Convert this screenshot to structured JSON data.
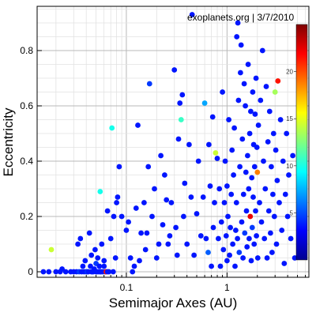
{
  "chart_data": {
    "type": "scatter",
    "title": "",
    "annotation": "exoplanets.org | 3/7/2010",
    "xlabel": "Semimajor Axes (AU)",
    "ylabel": "Eccentricity",
    "xscale": "log",
    "xlim": [
      0.013,
      6.5
    ],
    "ylim": [
      -0.02,
      0.96
    ],
    "x_ticks": [
      0.1,
      1
    ],
    "x_tick_labels": [
      "0.1",
      "1"
    ],
    "y_ticks": [
      0,
      0.2,
      0.4,
      0.6,
      0.8
    ],
    "y_tick_labels": [
      "0",
      "0.2",
      "0.4",
      "0.6",
      "0.8"
    ],
    "grid": true,
    "colorbar": {
      "placement": "right",
      "range": [
        0,
        25
      ],
      "ticks": [
        5,
        10,
        15,
        20
      ],
      "tick_labels": [
        "5",
        "10",
        "15",
        "20"
      ],
      "colormap": "jet"
    },
    "points": [
      [
        0.015,
        0.0,
        1
      ],
      [
        0.017,
        0.0,
        1
      ],
      [
        0.018,
        0.08,
        13
      ],
      [
        0.02,
        0.0,
        1
      ],
      [
        0.022,
        0.0,
        1
      ],
      [
        0.023,
        0.01,
        1
      ],
      [
        0.025,
        0.0,
        1
      ],
      [
        0.028,
        0.0,
        1
      ],
      [
        0.03,
        0.0,
        1
      ],
      [
        0.032,
        0.0,
        1
      ],
      [
        0.033,
        0.1,
        1
      ],
      [
        0.034,
        0.0,
        2
      ],
      [
        0.035,
        0.12,
        1
      ],
      [
        0.036,
        0.0,
        1
      ],
      [
        0.037,
        0.02,
        1
      ],
      [
        0.038,
        0.0,
        1
      ],
      [
        0.039,
        0.04,
        1
      ],
      [
        0.04,
        0.0,
        1
      ],
      [
        0.041,
        0.0,
        2
      ],
      [
        0.042,
        0.0,
        1
      ],
      [
        0.043,
        0.14,
        1
      ],
      [
        0.044,
        0.02,
        1
      ],
      [
        0.045,
        0.0,
        1
      ],
      [
        0.045,
        0.06,
        1
      ],
      [
        0.046,
        0.0,
        1
      ],
      [
        0.047,
        0.0,
        1
      ],
      [
        0.048,
        0.01,
        1
      ],
      [
        0.049,
        0.08,
        1
      ],
      [
        0.05,
        0.0,
        1
      ],
      [
        0.05,
        0.03,
        2
      ],
      [
        0.051,
        0.0,
        1
      ],
      [
        0.052,
        0.05,
        1
      ],
      [
        0.053,
        0.0,
        1
      ],
      [
        0.054,
        0.02,
        1
      ],
      [
        0.055,
        0.0,
        1
      ],
      [
        0.055,
        0.29,
        8
      ],
      [
        0.056,
        0.0,
        1
      ],
      [
        0.057,
        0.1,
        1
      ],
      [
        0.058,
        0.0,
        1
      ],
      [
        0.06,
        0.02,
        1
      ],
      [
        0.06,
        0.04,
        1
      ],
      [
        0.062,
        0.0,
        1
      ],
      [
        0.063,
        0.0,
        21
      ],
      [
        0.065,
        0.0,
        1
      ],
      [
        0.065,
        0.22,
        1
      ],
      [
        0.067,
        0.0,
        1
      ],
      [
        0.07,
        0.12,
        1
      ],
      [
        0.072,
        0.52,
        8
      ],
      [
        0.074,
        0.0,
        1
      ],
      [
        0.075,
        0.2,
        1
      ],
      [
        0.078,
        0.05,
        1
      ],
      [
        0.08,
        0.25,
        1
      ],
      [
        0.082,
        0.27,
        1
      ],
      [
        0.085,
        0.38,
        1
      ],
      [
        0.09,
        0.2,
        1
      ],
      [
        0.1,
        0.15,
        1
      ],
      [
        0.105,
        0.18,
        1
      ],
      [
        0.11,
        0.05,
        1
      ],
      [
        0.115,
        0.0,
        1
      ],
      [
        0.12,
        0.02,
        1
      ],
      [
        0.125,
        0.23,
        1
      ],
      [
        0.13,
        0.53,
        1
      ],
      [
        0.135,
        0.04,
        1
      ],
      [
        0.14,
        0.14,
        1
      ],
      [
        0.15,
        0.25,
        1
      ],
      [
        0.155,
        0.08,
        1
      ],
      [
        0.16,
        0.14,
        1
      ],
      [
        0.165,
        0.38,
        1
      ],
      [
        0.17,
        0.68,
        2
      ],
      [
        0.18,
        0.2,
        1
      ],
      [
        0.19,
        0.3,
        1
      ],
      [
        0.2,
        0.05,
        1
      ],
      [
        0.21,
        0.1,
        1
      ],
      [
        0.22,
        0.42,
        1
      ],
      [
        0.23,
        0.17,
        1
      ],
      [
        0.24,
        0.35,
        1
      ],
      [
        0.25,
        0.26,
        1
      ],
      [
        0.26,
        0.1,
        1
      ],
      [
        0.27,
        0.13,
        1
      ],
      [
        0.28,
        0.25,
        1
      ],
      [
        0.3,
        0.73,
        1
      ],
      [
        0.31,
        0.16,
        1
      ],
      [
        0.32,
        0.06,
        1
      ],
      [
        0.33,
        0.48,
        1
      ],
      [
        0.34,
        0.61,
        1
      ],
      [
        0.35,
        0.55,
        9
      ],
      [
        0.36,
        0.64,
        1
      ],
      [
        0.37,
        0.2,
        1
      ],
      [
        0.38,
        0.32,
        1
      ],
      [
        0.4,
        0.1,
        1
      ],
      [
        0.42,
        0.46,
        1
      ],
      [
        0.44,
        0.27,
        1
      ],
      [
        0.45,
        0.93,
        1
      ],
      [
        0.47,
        0.06,
        1
      ],
      [
        0.5,
        0.21,
        1
      ],
      [
        0.52,
        0.4,
        1
      ],
      [
        0.55,
        0.13,
        1
      ],
      [
        0.58,
        0.27,
        1
      ],
      [
        0.6,
        0.61,
        5
      ],
      [
        0.62,
        0.12,
        1
      ],
      [
        0.65,
        0.07,
        3
      ],
      [
        0.66,
        0.46,
        1
      ],
      [
        0.68,
        0.31,
        1
      ],
      [
        0.7,
        0.02,
        1
      ],
      [
        0.72,
        0.56,
        1
      ],
      [
        0.73,
        0.16,
        1
      ],
      [
        0.75,
        0.25,
        1
      ],
      [
        0.77,
        0.43,
        13
      ],
      [
        0.8,
        0.41,
        1
      ],
      [
        0.82,
        0.12,
        1
      ],
      [
        0.84,
        0.3,
        1
      ],
      [
        0.86,
        0.02,
        1
      ],
      [
        0.88,
        0.18,
        1
      ],
      [
        0.9,
        0.65,
        1
      ],
      [
        0.92,
        0.08,
        1
      ],
      [
        0.94,
        0.25,
        1
      ],
      [
        0.96,
        0.4,
        1
      ],
      [
        0.98,
        0.13,
        1
      ],
      [
        1.0,
        0.04,
        1
      ],
      [
        1.0,
        0.31,
        1
      ],
      [
        1.02,
        0.2,
        1
      ],
      [
        1.04,
        0.55,
        1
      ],
      [
        1.06,
        0.06,
        1
      ],
      [
        1.08,
        0.16,
        1
      ],
      [
        1.1,
        0.28,
        1
      ],
      [
        1.12,
        0.44,
        1
      ],
      [
        1.14,
        0.1,
        1
      ],
      [
        1.16,
        0.35,
        1
      ],
      [
        1.18,
        0.52,
        1
      ],
      [
        1.2,
        0.02,
        1
      ],
      [
        1.22,
        0.15,
        1
      ],
      [
        1.24,
        0.25,
        1
      ],
      [
        1.25,
        0.85,
        1
      ],
      [
        1.27,
        0.12,
        1
      ],
      [
        1.28,
        0.9,
        1
      ],
      [
        1.3,
        0.62,
        1
      ],
      [
        1.32,
        0.07,
        2
      ],
      [
        1.34,
        0.38,
        1
      ],
      [
        1.36,
        0.72,
        1
      ],
      [
        1.38,
        0.82,
        1
      ],
      [
        1.4,
        0.18,
        1
      ],
      [
        1.42,
        0.48,
        1
      ],
      [
        1.44,
        0.05,
        1
      ],
      [
        1.46,
        0.28,
        1
      ],
      [
        1.48,
        0.68,
        1
      ],
      [
        1.5,
        0.14,
        2
      ],
      [
        1.52,
        0.6,
        1
      ],
      [
        1.54,
        0.36,
        1
      ],
      [
        1.56,
        0.22,
        1
      ],
      [
        1.58,
        0.09,
        1
      ],
      [
        1.6,
        0.42,
        1
      ],
      [
        1.62,
        0.75,
        1
      ],
      [
        1.64,
        0.3,
        1
      ],
      [
        1.66,
        0.12,
        1
      ],
      [
        1.68,
        0.5,
        1
      ],
      [
        1.7,
        0.2,
        22
      ],
      [
        1.72,
        0.58,
        1
      ],
      [
        1.74,
        0.04,
        1
      ],
      [
        1.76,
        0.34,
        1
      ],
      [
        1.78,
        0.16,
        2
      ],
      [
        1.8,
        0.65,
        1
      ],
      [
        1.82,
        0.27,
        1
      ],
      [
        1.84,
        0.46,
        1
      ],
      [
        1.86,
        0.1,
        1
      ],
      [
        1.88,
        0.38,
        1
      ],
      [
        1.9,
        0.57,
        1
      ],
      [
        1.92,
        0.22,
        1
      ],
      [
        1.94,
        0.7,
        1
      ],
      [
        1.96,
        0.13,
        1
      ],
      [
        1.98,
        0.45,
        1
      ],
      [
        2.0,
        0.36,
        18
      ],
      [
        2.02,
        0.05,
        1
      ],
      [
        2.05,
        0.53,
        1
      ],
      [
        2.1,
        0.25,
        1
      ],
      [
        2.15,
        0.62,
        1
      ],
      [
        2.2,
        0.18,
        1
      ],
      [
        2.25,
        0.8,
        1
      ],
      [
        2.3,
        0.4,
        1
      ],
      [
        2.35,
        0.12,
        1
      ],
      [
        2.4,
        0.3,
        1
      ],
      [
        2.45,
        0.67,
        1
      ],
      [
        2.5,
        0.05,
        1
      ],
      [
        2.55,
        0.47,
        1
      ],
      [
        2.6,
        0.22,
        1
      ],
      [
        2.65,
        0.58,
        1
      ],
      [
        2.7,
        0.14,
        1
      ],
      [
        2.75,
        0.38,
        1
      ],
      [
        2.8,
        0.07,
        1
      ],
      [
        2.85,
        0.28,
        1
      ],
      [
        2.9,
        0.5,
        1
      ],
      [
        2.95,
        0.2,
        1
      ],
      [
        3.0,
        0.65,
        12
      ],
      [
        3.05,
        0.44,
        1
      ],
      [
        3.1,
        0.1,
        1
      ],
      [
        3.15,
        0.33,
        1
      ],
      [
        3.2,
        0.69,
        21
      ],
      [
        3.3,
        0.25,
        1
      ],
      [
        3.4,
        0.55,
        1
      ],
      [
        3.5,
        0.15,
        1
      ],
      [
        3.6,
        0.4,
        1
      ],
      [
        3.7,
        0.03,
        1
      ],
      [
        3.8,
        0.28,
        1
      ],
      [
        3.9,
        0.5,
        1
      ],
      [
        4.0,
        0.2,
        1
      ],
      [
        4.1,
        0.35,
        1
      ],
      [
        4.3,
        0.12,
        1
      ],
      [
        4.5,
        0.42,
        1
      ],
      [
        4.7,
        0.05,
        1
      ]
    ]
  }
}
